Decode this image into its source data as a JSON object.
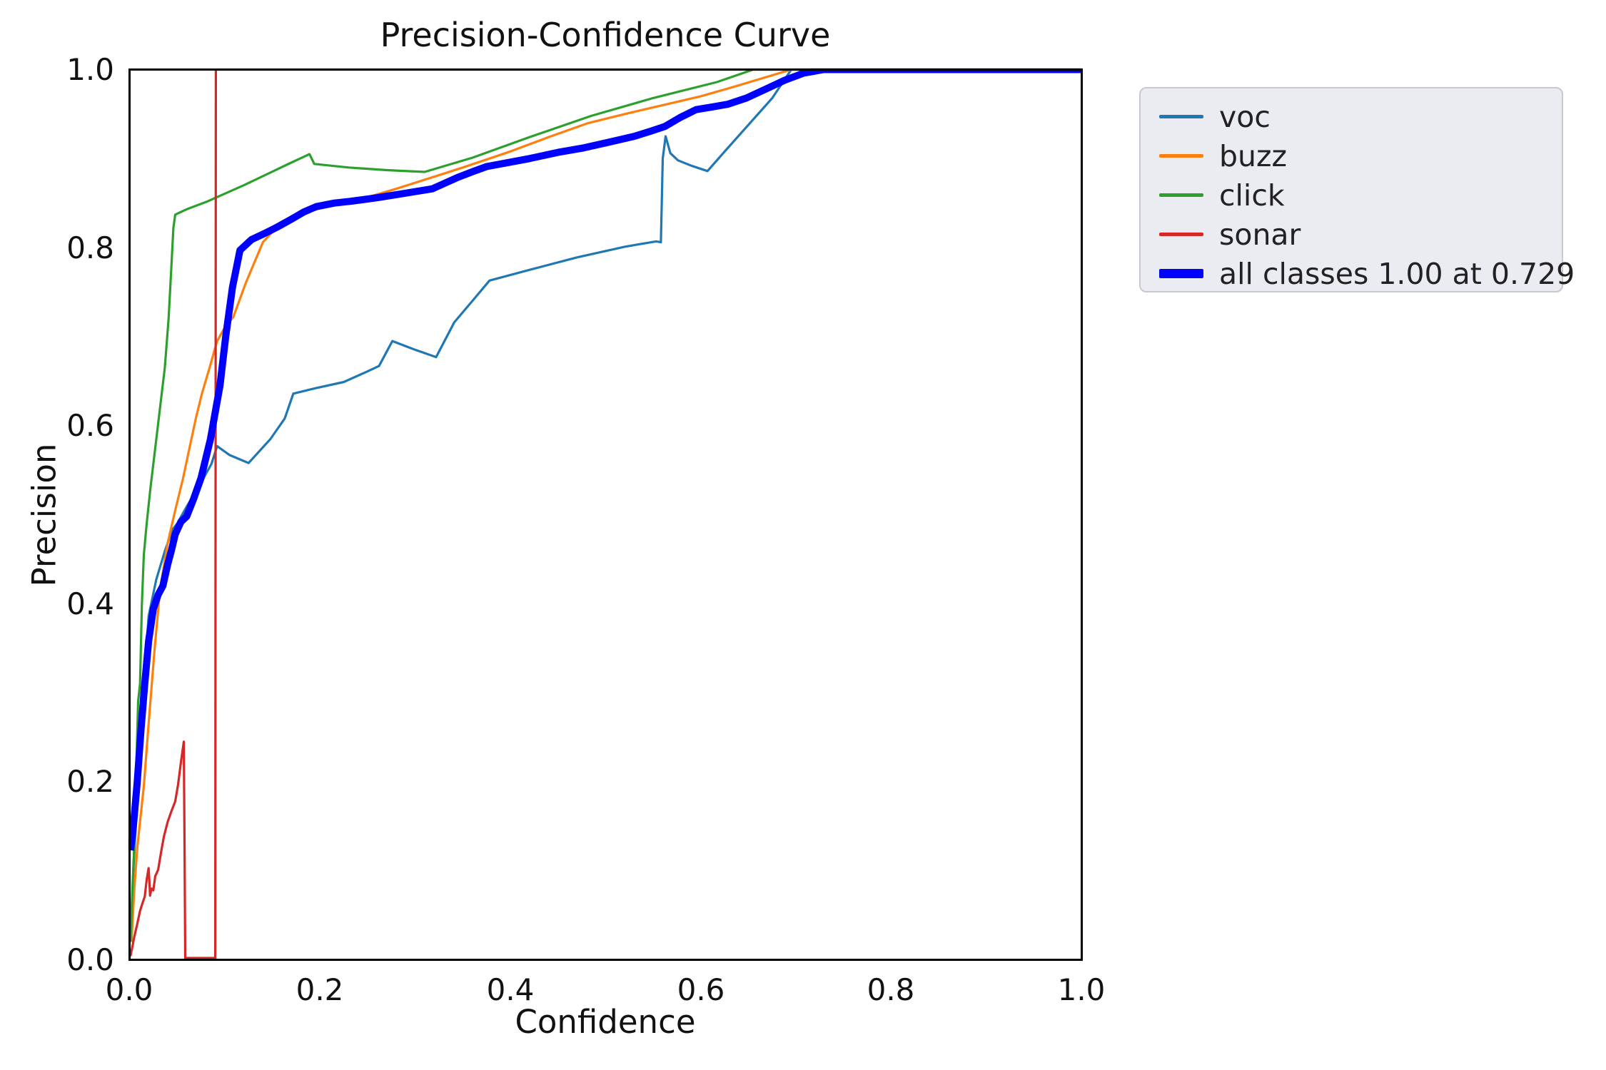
{
  "figure": {
    "title": "Precision-Confidence Curve",
    "xlabel": "Confidence",
    "ylabel": "Precision"
  },
  "axes": {
    "x_tick_labels": [
      "0.0",
      "0.2",
      "0.4",
      "0.6",
      "0.8",
      "1.0"
    ],
    "y_tick_labels": [
      "1.0",
      "0.8",
      "0.6",
      "0.4",
      "0.2",
      "0.0"
    ]
  },
  "legend": {
    "items": [
      {
        "label": "voc"
      },
      {
        "label": "buzz"
      },
      {
        "label": "click"
      },
      {
        "label": "sonar"
      },
      {
        "label": "all classes 1.00 at 0.729"
      }
    ]
  },
  "chart_data": {
    "type": "line",
    "title": "Precision-Confidence Curve",
    "xlabel": "Confidence",
    "ylabel": "Precision",
    "xlim": [
      0,
      1
    ],
    "ylim": [
      0,
      1
    ],
    "x_ticks": [
      0,
      0.2,
      0.4,
      0.6,
      0.8,
      1.0
    ],
    "y_ticks": [
      0,
      0.2,
      0.4,
      0.6,
      0.8,
      1.0
    ],
    "grid": false,
    "legend_position": "outside-upper-right",
    "best_all_classes": {
      "precision": 1.0,
      "confidence": 0.729
    },
    "series": [
      {
        "name": "voc",
        "color": "#1f77b4",
        "line_width": 3.2,
        "points": [
          [
            0.002,
            0.05
          ],
          [
            0.004,
            0.1
          ],
          [
            0.006,
            0.14
          ],
          [
            0.008,
            0.18
          ],
          [
            0.01,
            0.23
          ],
          [
            0.012,
            0.29
          ],
          [
            0.013,
            0.307
          ],
          [
            0.015,
            0.3
          ],
          [
            0.017,
            0.34
          ],
          [
            0.02,
            0.386
          ],
          [
            0.028,
            0.427
          ],
          [
            0.037,
            0.459
          ],
          [
            0.045,
            0.483
          ],
          [
            0.05,
            0.49
          ],
          [
            0.06,
            0.509
          ],
          [
            0.075,
            0.536
          ],
          [
            0.086,
            0.557
          ],
          [
            0.092,
            0.577
          ],
          [
            0.105,
            0.567
          ],
          [
            0.125,
            0.558
          ],
          [
            0.148,
            0.585
          ],
          [
            0.163,
            0.608
          ],
          [
            0.172,
            0.636
          ],
          [
            0.195,
            0.642
          ],
          [
            0.225,
            0.649
          ],
          [
            0.25,
            0.661
          ],
          [
            0.262,
            0.667
          ],
          [
            0.276,
            0.695
          ],
          [
            0.298,
            0.686
          ],
          [
            0.322,
            0.677
          ],
          [
            0.341,
            0.716
          ],
          [
            0.36,
            0.74
          ],
          [
            0.378,
            0.763
          ],
          [
            0.42,
            0.775
          ],
          [
            0.47,
            0.789
          ],
          [
            0.52,
            0.801
          ],
          [
            0.553,
            0.807
          ],
          [
            0.558,
            0.806
          ],
          [
            0.56,
            0.9
          ],
          [
            0.563,
            0.925
          ],
          [
            0.568,
            0.906
          ],
          [
            0.576,
            0.898
          ],
          [
            0.59,
            0.892
          ],
          [
            0.607,
            0.886
          ],
          [
            0.625,
            0.908
          ],
          [
            0.65,
            0.938
          ],
          [
            0.675,
            0.968
          ],
          [
            0.695,
            1.0
          ],
          [
            1.0,
            1.0
          ]
        ]
      },
      {
        "name": "buzz",
        "color": "#ff7f0e",
        "line_width": 3.2,
        "points": [
          [
            0.002,
            0.02
          ],
          [
            0.005,
            0.08
          ],
          [
            0.008,
            0.125
          ],
          [
            0.012,
            0.165
          ],
          [
            0.015,
            0.195
          ],
          [
            0.02,
            0.265
          ],
          [
            0.026,
            0.345
          ],
          [
            0.032,
            0.416
          ],
          [
            0.04,
            0.468
          ],
          [
            0.048,
            0.505
          ],
          [
            0.056,
            0.54
          ],
          [
            0.063,
            0.575
          ],
          [
            0.07,
            0.61
          ],
          [
            0.076,
            0.636
          ],
          [
            0.084,
            0.665
          ],
          [
            0.092,
            0.695
          ],
          [
            0.101,
            0.712
          ],
          [
            0.109,
            0.722
          ],
          [
            0.122,
            0.76
          ],
          [
            0.14,
            0.806
          ],
          [
            0.152,
            0.82
          ],
          [
            0.165,
            0.83
          ],
          [
            0.187,
            0.84
          ],
          [
            0.215,
            0.849
          ],
          [
            0.245,
            0.855
          ],
          [
            0.28,
            0.866
          ],
          [
            0.315,
            0.878
          ],
          [
            0.35,
            0.89
          ],
          [
            0.4,
            0.908
          ],
          [
            0.44,
            0.924
          ],
          [
            0.482,
            0.94
          ],
          [
            0.52,
            0.95
          ],
          [
            0.56,
            0.96
          ],
          [
            0.6,
            0.97
          ],
          [
            0.636,
            0.981
          ],
          [
            0.67,
            0.992
          ],
          [
            0.695,
            1.0
          ],
          [
            1.0,
            1.0
          ]
        ]
      },
      {
        "name": "click",
        "color": "#2ca02c",
        "line_width": 3.2,
        "points": [
          [
            0.001,
            0.02
          ],
          [
            0.003,
            0.08
          ],
          [
            0.005,
            0.13
          ],
          [
            0.007,
            0.21
          ],
          [
            0.009,
            0.29
          ],
          [
            0.011,
            0.31
          ],
          [
            0.013,
            0.4
          ],
          [
            0.015,
            0.455
          ],
          [
            0.018,
            0.49
          ],
          [
            0.022,
            0.53
          ],
          [
            0.027,
            0.575
          ],
          [
            0.032,
            0.62
          ],
          [
            0.037,
            0.665
          ],
          [
            0.041,
            0.72
          ],
          [
            0.044,
            0.78
          ],
          [
            0.046,
            0.822
          ],
          [
            0.048,
            0.837
          ],
          [
            0.06,
            0.843
          ],
          [
            0.082,
            0.852
          ],
          [
            0.12,
            0.87
          ],
          [
            0.165,
            0.893
          ],
          [
            0.189,
            0.905
          ],
          [
            0.194,
            0.894
          ],
          [
            0.23,
            0.89
          ],
          [
            0.27,
            0.887
          ],
          [
            0.31,
            0.885
          ],
          [
            0.36,
            0.901
          ],
          [
            0.42,
            0.924
          ],
          [
            0.485,
            0.948
          ],
          [
            0.55,
            0.968
          ],
          [
            0.617,
            0.986
          ],
          [
            0.655,
            1.0
          ],
          [
            1.0,
            1.0
          ]
        ]
      },
      {
        "name": "sonar",
        "color": "#d62728",
        "line_width": 3.2,
        "points": [
          [
            0.001,
            0.004
          ],
          [
            0.003,
            0.015
          ],
          [
            0.005,
            0.026
          ],
          [
            0.008,
            0.04
          ],
          [
            0.011,
            0.055
          ],
          [
            0.014,
            0.065
          ],
          [
            0.016,
            0.071
          ],
          [
            0.018,
            0.09
          ],
          [
            0.02,
            0.103
          ],
          [
            0.021,
            0.085
          ],
          [
            0.0215,
            0.072
          ],
          [
            0.023,
            0.08
          ],
          [
            0.025,
            0.078
          ],
          [
            0.027,
            0.094
          ],
          [
            0.03,
            0.101
          ],
          [
            0.033,
            0.12
          ],
          [
            0.036,
            0.138
          ],
          [
            0.04,
            0.155
          ],
          [
            0.044,
            0.167
          ],
          [
            0.048,
            0.178
          ],
          [
            0.051,
            0.197
          ],
          [
            0.054,
            0.222
          ],
          [
            0.057,
            0.245
          ],
          [
            0.0578,
            0.12
          ],
          [
            0.0585,
            0.002
          ],
          [
            0.09,
            0.002
          ],
          [
            0.0906,
            1.0
          ],
          [
            1.0,
            1.0
          ]
        ]
      },
      {
        "name": "all classes 1.00 at 0.729",
        "color": "#0000ff",
        "line_width": 10,
        "points": [
          [
            0.001,
            0.123
          ],
          [
            0.004,
            0.15
          ],
          [
            0.008,
            0.199
          ],
          [
            0.012,
            0.258
          ],
          [
            0.016,
            0.31
          ],
          [
            0.02,
            0.358
          ],
          [
            0.025,
            0.394
          ],
          [
            0.03,
            0.41
          ],
          [
            0.035,
            0.42
          ],
          [
            0.04,
            0.444
          ],
          [
            0.044,
            0.46
          ],
          [
            0.048,
            0.478
          ],
          [
            0.054,
            0.492
          ],
          [
            0.06,
            0.498
          ],
          [
            0.067,
            0.517
          ],
          [
            0.075,
            0.541
          ],
          [
            0.085,
            0.585
          ],
          [
            0.095,
            0.645
          ],
          [
            0.101,
            0.7
          ],
          [
            0.108,
            0.755
          ],
          [
            0.116,
            0.797
          ],
          [
            0.128,
            0.809
          ],
          [
            0.142,
            0.816
          ],
          [
            0.155,
            0.823
          ],
          [
            0.17,
            0.832
          ],
          [
            0.183,
            0.84
          ],
          [
            0.196,
            0.846
          ],
          [
            0.215,
            0.85
          ],
          [
            0.232,
            0.852
          ],
          [
            0.26,
            0.856
          ],
          [
            0.289,
            0.861
          ],
          [
            0.318,
            0.866
          ],
          [
            0.345,
            0.879
          ],
          [
            0.362,
            0.886
          ],
          [
            0.375,
            0.891
          ],
          [
            0.4,
            0.896
          ],
          [
            0.42,
            0.9
          ],
          [
            0.45,
            0.907
          ],
          [
            0.477,
            0.912
          ],
          [
            0.502,
            0.918
          ],
          [
            0.53,
            0.925
          ],
          [
            0.548,
            0.931
          ],
          [
            0.562,
            0.936
          ],
          [
            0.578,
            0.946
          ],
          [
            0.595,
            0.955
          ],
          [
            0.612,
            0.958
          ],
          [
            0.628,
            0.961
          ],
          [
            0.648,
            0.968
          ],
          [
            0.668,
            0.978
          ],
          [
            0.688,
            0.988
          ],
          [
            0.708,
            0.996
          ],
          [
            0.729,
            1.0
          ],
          [
            1.0,
            1.0
          ]
        ]
      }
    ]
  }
}
